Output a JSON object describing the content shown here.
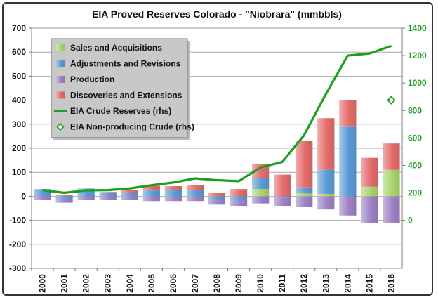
{
  "chart_data": {
    "type": "bar",
    "title": "EIA Proved Reserves Colorado - \"Niobrara\" (mmbbls)",
    "categories": [
      "2000",
      "2001",
      "2002",
      "2003",
      "2004",
      "2005",
      "2006",
      "2007",
      "2008",
      "2009",
      "2010",
      "2011",
      "2012",
      "2013",
      "2014",
      "2015",
      "2016"
    ],
    "ylim": [
      -300,
      700
    ],
    "y_ticks": [
      -300,
      -200,
      -100,
      0,
      100,
      200,
      300,
      400,
      500,
      600,
      700
    ],
    "y2lim": [
      -350,
      1400
    ],
    "y2_ticks": [
      0,
      200,
      400,
      600,
      800,
      1000,
      1200,
      1400
    ],
    "grid": true,
    "legend_position": "top-left",
    "series": [
      {
        "name": "Sales and Acquisitions",
        "kind": "bar",
        "axis": "left",
        "color": "#a9d46f",
        "values": [
          0,
          0,
          0,
          0,
          0,
          0,
          0,
          0,
          0,
          0,
          30,
          0,
          12,
          10,
          0,
          40,
          110
        ]
      },
      {
        "name": "Adjustments and Revisions",
        "kind": "bar",
        "axis": "left",
        "color": "#5b9bd5",
        "values": [
          30,
          -15,
          32,
          15,
          15,
          24,
          25,
          25,
          -15,
          -15,
          45,
          -5,
          25,
          100,
          290,
          0,
          0
        ]
      },
      {
        "name": "Production",
        "kind": "bar",
        "axis": "left",
        "color": "#9e82c6",
        "values": [
          -15,
          -12,
          -15,
          -15,
          -15,
          -20,
          -20,
          -20,
          -20,
          -25,
          -30,
          -35,
          -45,
          -55,
          -80,
          -110,
          -110
        ]
      },
      {
        "name": "Discoveries and Extensions",
        "kind": "bar",
        "axis": "left",
        "color": "#e46c6c",
        "values": [
          0,
          5,
          0,
          3,
          10,
          20,
          17,
          20,
          15,
          30,
          60,
          90,
          195,
          215,
          110,
          120,
          110
        ]
      },
      {
        "name": "EIA Crude Reserves (rhs)",
        "kind": "line",
        "axis": "right",
        "color": "#1e9e1e",
        "values": [
          220,
          200,
          218,
          220,
          232,
          255,
          275,
          305,
          292,
          285,
          385,
          425,
          620,
          920,
          1200,
          1215,
          1270
        ]
      },
      {
        "name": "EIA Non-producing Crude (rhs)",
        "kind": "marker",
        "axis": "right",
        "color": "#1e9e1e",
        "values": [
          null,
          null,
          null,
          null,
          null,
          null,
          null,
          null,
          null,
          null,
          null,
          null,
          null,
          null,
          null,
          null,
          875
        ]
      }
    ]
  }
}
